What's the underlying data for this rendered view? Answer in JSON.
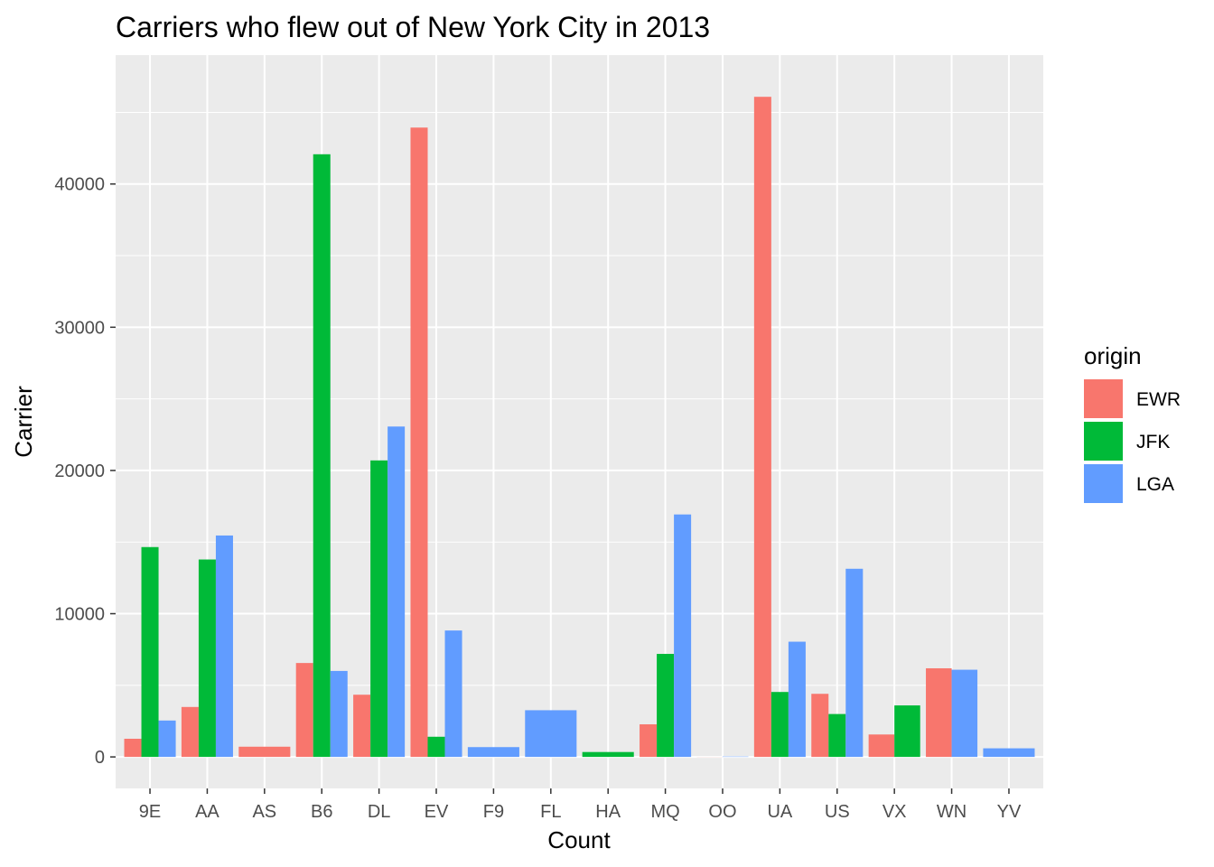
{
  "chart_data": {
    "type": "bar",
    "title": "Carriers who flew out of New York City in 2013",
    "xlabel": "Count",
    "ylabel": "Carrier",
    "ylim": [
      -2200,
      49000
    ],
    "yticks": [
      0,
      10000,
      20000,
      30000,
      40000
    ],
    "y_tick_labels": [
      "0",
      "10000",
      "20000",
      "30000",
      "40000"
    ],
    "grid": true,
    "legend": {
      "title": "origin",
      "position": "right"
    },
    "categories": [
      "9E",
      "AA",
      "AS",
      "B6",
      "DL",
      "EV",
      "F9",
      "FL",
      "HA",
      "MQ",
      "OO",
      "UA",
      "US",
      "VX",
      "WN",
      "YV"
    ],
    "series": [
      {
        "name": "EWR",
        "color": "#F8766D",
        "values": [
          1268,
          3487,
          714,
          6557,
          4342,
          43939,
          null,
          null,
          null,
          2276,
          6,
          46087,
          4405,
          1566,
          6188,
          null
        ]
      },
      {
        "name": "JFK",
        "color": "#00BA38",
        "values": [
          14651,
          13783,
          null,
          42076,
          20701,
          1408,
          null,
          null,
          342,
          7193,
          null,
          4534,
          2995,
          3596,
          null,
          null
        ]
      },
      {
        "name": "LGA",
        "color": "#619CFF",
        "values": [
          2541,
          15459,
          null,
          6002,
          23067,
          8826,
          685,
          3260,
          null,
          16928,
          26,
          8044,
          13136,
          null,
          6087,
          601
        ]
      }
    ]
  }
}
